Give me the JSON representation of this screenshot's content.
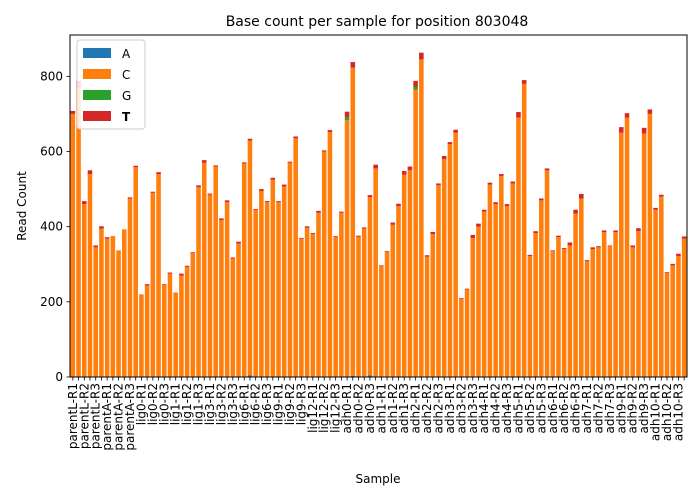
{
  "chart_data": {
    "type": "bar",
    "stacked": true,
    "title": "Base count per sample for position 803048",
    "xlabel": "Sample",
    "ylabel": "Read Count",
    "ylim": [
      0,
      910
    ],
    "yticks": [
      0,
      200,
      400,
      600,
      800
    ],
    "legend": {
      "location": "top-left",
      "bold_entry": "T"
    },
    "grid": false,
    "categories": [
      "parentL-R1",
      "",
      "parentL-R2",
      "",
      "parentL-R3",
      "",
      "parentA-R1",
      "",
      "parentA-R2",
      "",
      "parentA-R3",
      "",
      "lig0-R1",
      "",
      "lig0-R2",
      "",
      "lig0-R3",
      "",
      "lig1-R1",
      "",
      "lig1-R2",
      "",
      "lig1-R3",
      "",
      "lig3-R1",
      "",
      "lig3-R2",
      "",
      "lig3-R3",
      "",
      "lig6-R1",
      "",
      "lig6-R2",
      "",
      "lig6-R3",
      "",
      "lig9-R1",
      "",
      "lig9-R2",
      "",
      "lig9-R3",
      "",
      "lig12-R1",
      "",
      "lig12-R2",
      "",
      "lig12-R3",
      "",
      "adh0-R1",
      "",
      "adh0-R2",
      "",
      "adh0-R3",
      "",
      "adh1-R1",
      "",
      "adh1-R2",
      "",
      "adh1-R3",
      "",
      "adh2-R1",
      "",
      "adh2-R2",
      "",
      "adh2-R3",
      "",
      "adh3-R1",
      "",
      "adh3-R2",
      "",
      "adh3-R3",
      "",
      "adh4-R1",
      "",
      "adh4-R2",
      "",
      "adh4-R3",
      "",
      "adh5-R1",
      "",
      "adh5-R2",
      "",
      "adh5-R3",
      "",
      "adh6-R1",
      "",
      "adh6-R2",
      "",
      "adh6-R3",
      "",
      "adh7-R1",
      "",
      "adh7-R2",
      "",
      "adh7-R3",
      "",
      "adh9-R1",
      "",
      "adh9-R2",
      "",
      "adh9-R3",
      "",
      "adh10-R1",
      "",
      "adh10-R2",
      "",
      "adh10-R3",
      ""
    ],
    "series": [
      {
        "name": "A",
        "color": "#1f77b4",
        "values": [
          0,
          0,
          0,
          0,
          0,
          0,
          0,
          0,
          0,
          0,
          0,
          0,
          0,
          0,
          0,
          0,
          0,
          0,
          0,
          0,
          0,
          0,
          0,
          0,
          0,
          0,
          0,
          0,
          0,
          0,
          0,
          4,
          0,
          0,
          0,
          0,
          0,
          0,
          0,
          0,
          0,
          0,
          0,
          0,
          0,
          0,
          0,
          0,
          0,
          3,
          0,
          0,
          4,
          0,
          0,
          0,
          0,
          0,
          0,
          0,
          0,
          0,
          0,
          0,
          0,
          0,
          0,
          0,
          0,
          0,
          0,
          0,
          0,
          0,
          0,
          0,
          0,
          0,
          0,
          0,
          0,
          0,
          0,
          0,
          0,
          0,
          0,
          0,
          0,
          0,
          0,
          0,
          0,
          0,
          0,
          0,
          0,
          0,
          0,
          0,
          0,
          0,
          0,
          0,
          0,
          0,
          0,
          0
        ]
      },
      {
        "name": "C",
        "color": "#ff7f0e",
        "values": [
          700,
          770,
          460,
          540,
          345,
          395,
          368,
          375,
          337,
          393,
          475,
          558,
          220,
          243,
          490,
          540,
          245,
          275,
          225,
          270,
          293,
          330,
          505,
          570,
          485,
          560,
          417,
          465,
          315,
          355,
          568,
          625,
          445,
          495,
          465,
          525,
          465,
          507,
          570,
          635,
          368,
          397,
          380,
          437,
          600,
          652,
          373,
          437,
          683,
          820,
          373,
          395,
          475,
          555,
          295,
          333,
          405,
          455,
          538,
          550,
          765,
          845,
          320,
          380,
          510,
          580,
          620,
          650,
          208,
          233,
          370,
          400,
          440,
          512,
          460,
          535,
          455,
          515,
          690,
          780,
          322,
          383,
          470,
          550,
          335,
          372,
          340,
          350,
          435,
          475,
          308,
          340,
          345,
          385,
          348,
          385,
          650,
          690,
          345,
          388,
          648,
          700,
          445,
          480,
          277,
          297,
          322,
          368
        ]
      },
      {
        "name": "G",
        "color": "#2ca02c",
        "values": [
          0,
          0,
          0,
          0,
          0,
          0,
          0,
          0,
          0,
          0,
          0,
          0,
          0,
          0,
          0,
          0,
          0,
          0,
          0,
          0,
          0,
          0,
          0,
          0,
          0,
          0,
          0,
          0,
          0,
          0,
          0,
          0,
          0,
          0,
          0,
          0,
          0,
          0,
          0,
          0,
          0,
          0,
          0,
          0,
          0,
          0,
          0,
          0,
          8,
          0,
          0,
          0,
          0,
          0,
          0,
          0,
          0,
          0,
          0,
          0,
          8,
          0,
          0,
          0,
          0,
          0,
          0,
          0,
          0,
          0,
          0,
          0,
          0,
          0,
          0,
          0,
          0,
          0,
          0,
          0,
          0,
          0,
          0,
          0,
          0,
          0,
          0,
          0,
          0,
          0,
          0,
          0,
          0,
          0,
          0,
          0,
          0,
          0,
          0,
          0,
          0,
          0,
          0,
          0,
          0,
          0,
          0,
          0
        ]
      },
      {
        "name": "T",
        "color": "#d62728",
        "values": [
          8,
          18,
          8,
          10,
          5,
          6,
          4,
          0,
          0,
          0,
          3,
          4,
          0,
          4,
          3,
          5,
          2,
          3,
          0,
          5,
          3,
          2,
          5,
          7,
          3,
          3,
          5,
          5,
          3,
          5,
          3,
          5,
          2,
          5,
          3,
          5,
          3,
          5,
          3,
          5,
          2,
          4,
          3,
          5,
          3,
          5,
          2,
          3,
          15,
          15,
          3,
          3,
          5,
          10,
          2,
          2,
          6,
          6,
          10,
          10,
          15,
          18,
          4,
          6,
          5,
          8,
          5,
          8,
          2,
          2,
          8,
          8,
          5,
          5,
          5,
          5,
          5,
          5,
          15,
          10,
          3,
          5,
          5,
          5,
          2,
          4,
          3,
          8,
          10,
          12,
          3,
          5,
          3,
          5,
          2,
          5,
          15,
          12,
          5,
          8,
          15,
          12,
          5,
          5,
          2,
          4,
          6,
          6
        ]
      }
    ]
  }
}
